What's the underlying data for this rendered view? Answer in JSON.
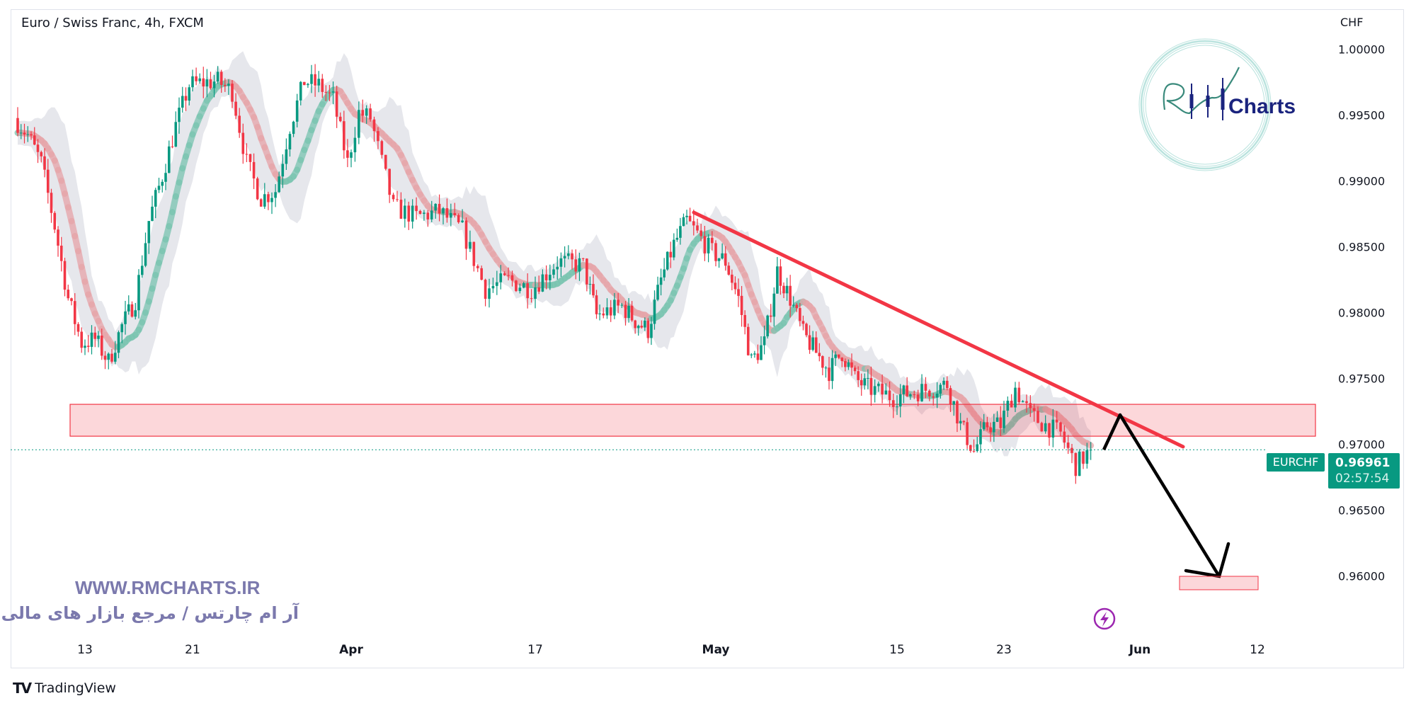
{
  "header": {
    "title": "Euro / Swiss Franc, 4h, FXCM",
    "currency": "CHF"
  },
  "price_tag": {
    "symbol": "EURCHF",
    "price": "0.96961",
    "countdown": "02:57:54",
    "color": "#089981"
  },
  "watermark": {
    "url": "WWW.RMCHARTS.IR",
    "tagline": "آر ام چارتس / مرجع بازار های مالی",
    "logo_text": "RM Charts"
  },
  "footer": {
    "brand": "TradingView",
    "logo": "TV"
  },
  "icons": {
    "alert": "lightning-icon"
  },
  "chart_data": {
    "type": "candlestick",
    "title": "Euro / Swiss Franc, 4h, FXCM",
    "ylabel": "CHF",
    "ylim": [
      0.9545,
      1.0015
    ],
    "y_ticks": [
      "1.00000",
      "0.99500",
      "0.99000",
      "0.98500",
      "0.98000",
      "0.97500",
      "0.97000",
      "0.96500",
      "0.96000"
    ],
    "x_ticks": [
      {
        "label": "13",
        "date": "2023-03-13",
        "bold": false
      },
      {
        "label": "21",
        "date": "2023-03-21",
        "bold": false
      },
      {
        "label": "Apr",
        "date": "2023-04-01",
        "bold": true
      },
      {
        "label": "17",
        "date": "2023-04-17",
        "bold": false
      },
      {
        "label": "May",
        "date": "2023-05-01",
        "bold": true
      },
      {
        "label": "15",
        "date": "2023-05-15",
        "bold": false
      },
      {
        "label": "23",
        "date": "2023-05-23",
        "bold": false
      },
      {
        "label": "Jun",
        "date": "2023-06-01",
        "bold": true
      },
      {
        "label": "12",
        "date": "2023-06-12",
        "bold": false
      }
    ],
    "grid": false,
    "up_color": "#089981",
    "down_color": "#f23645",
    "close_series": [
      [
        "2023-03-08",
        0.9948
      ],
      [
        "2023-03-09",
        0.9935
      ],
      [
        "2023-03-10",
        0.9914
      ],
      [
        "2023-03-11",
        0.9866
      ],
      [
        "2023-03-12",
        0.9811
      ],
      [
        "2023-03-13",
        0.9777
      ],
      [
        "2023-03-14",
        0.978
      ],
      [
        "2023-03-15",
        0.9763
      ],
      [
        "2023-03-16",
        0.979
      ],
      [
        "2023-03-17",
        0.981
      ],
      [
        "2023-03-18",
        0.987
      ],
      [
        "2023-03-19",
        0.9904
      ],
      [
        "2023-03-20",
        0.9942
      ],
      [
        "2023-03-21",
        0.9973
      ],
      [
        "2023-03-22",
        0.9975
      ],
      [
        "2023-03-23",
        0.9976
      ],
      [
        "2023-03-24",
        0.9968
      ],
      [
        "2023-03-25",
        0.9914
      ],
      [
        "2023-03-26",
        0.9887
      ],
      [
        "2023-03-27",
        0.9893
      ],
      [
        "2023-03-28",
        0.9942
      ],
      [
        "2023-03-29",
        0.9976
      ],
      [
        "2023-03-30",
        0.9973
      ],
      [
        "2023-03-31",
        0.9962
      ],
      [
        "2023-04-01",
        0.9914
      ],
      [
        "2023-04-02",
        0.9952
      ],
      [
        "2023-04-03",
        0.9948
      ],
      [
        "2023-04-04",
        0.9914
      ],
      [
        "2023-04-05",
        0.988
      ],
      [
        "2023-04-07",
        0.9873
      ],
      [
        "2023-04-09",
        0.9877
      ],
      [
        "2023-04-11",
        0.9863
      ],
      [
        "2023-04-13",
        0.9818
      ],
      [
        "2023-04-15",
        0.9825
      ],
      [
        "2023-04-17",
        0.9818
      ],
      [
        "2023-04-19",
        0.9839
      ],
      [
        "2023-04-21",
        0.9836
      ],
      [
        "2023-04-22",
        0.9798
      ],
      [
        "2023-04-24",
        0.9805
      ],
      [
        "2023-04-25",
        0.9794
      ],
      [
        "2023-04-26",
        0.9787
      ],
      [
        "2023-04-27",
        0.9825
      ],
      [
        "2023-04-28",
        0.9852
      ],
      [
        "2023-04-29",
        0.987
      ],
      [
        "2023-05-01",
        0.9846
      ],
      [
        "2023-05-02",
        0.9839
      ],
      [
        "2023-05-03",
        0.9811
      ],
      [
        "2023-05-04",
        0.9763
      ],
      [
        "2023-05-05",
        0.9777
      ],
      [
        "2023-05-06",
        0.9832
      ],
      [
        "2023-05-07",
        0.9811
      ],
      [
        "2023-05-08",
        0.9784
      ],
      [
        "2023-05-09",
        0.977
      ],
      [
        "2023-05-10",
        0.9756
      ],
      [
        "2023-05-11",
        0.977
      ],
      [
        "2023-05-12",
        0.975
      ],
      [
        "2023-05-13",
        0.9743
      ],
      [
        "2023-05-15",
        0.9736
      ],
      [
        "2023-05-16",
        0.9739
      ],
      [
        "2023-05-18",
        0.9743
      ],
      [
        "2023-05-19",
        0.9746
      ],
      [
        "2023-05-20",
        0.9715
      ],
      [
        "2023-05-21",
        0.9695
      ],
      [
        "2023-05-22",
        0.9715
      ],
      [
        "2023-05-23",
        0.9715
      ],
      [
        "2023-05-24",
        0.9743
      ],
      [
        "2023-05-25",
        0.9722
      ],
      [
        "2023-05-26",
        0.9715
      ],
      [
        "2023-05-27",
        0.9708
      ],
      [
        "2023-05-28",
        0.9684
      ],
      [
        "2023-05-29",
        0.96961
      ]
    ],
    "last_price": 0.96961,
    "annotations": {
      "support_zone": {
        "top": 0.97306,
        "bottom": 0.97064,
        "from": "2023-03-13",
        "to": "2023-06-15",
        "color": "#f23645"
      },
      "trendline": {
        "from": [
          "2023-04-29",
          0.98763
        ],
        "to": [
          "2023-06-04",
          0.96984
        ],
        "color": "#f23645"
      },
      "projection_path": [
        [
          "2023-05-29",
          0.96961
        ],
        [
          "2023-05-30",
          0.97226
        ],
        [
          "2023-06-07",
          0.96
        ]
      ],
      "target_zone": {
        "top": 0.96,
        "bottom": 0.95898,
        "from": "2023-06-04",
        "to": "2023-06-10"
      }
    }
  }
}
